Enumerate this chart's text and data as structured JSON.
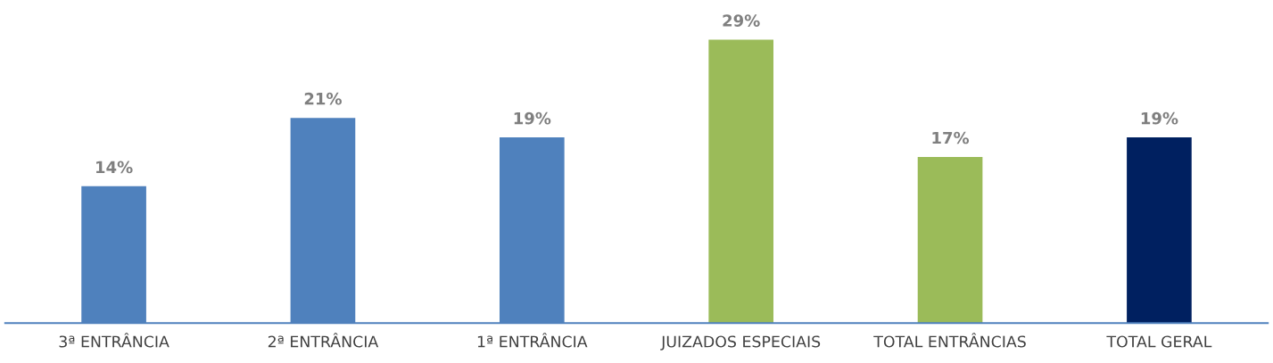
{
  "chart_data": {
    "type": "bar",
    "categories": [
      "3ª ENTRÂNCIA",
      "2ª ENTRÂNCIA",
      "1ª ENTRÂNCIA",
      "JUIZADOS ESPECIAIS",
      "TOTAL ENTRÂNCIAS",
      "TOTAL GERAL"
    ],
    "values": [
      14,
      21,
      19,
      29,
      17,
      19
    ],
    "colors": [
      "#4f81bd",
      "#4f81bd",
      "#4f81bd",
      "#9bbb59",
      "#9bbb59",
      "#002060"
    ],
    "value_labels": [
      "14%",
      "21%",
      "19%",
      "29%",
      "17%",
      "19%"
    ],
    "grid": false,
    "legend": false
  }
}
